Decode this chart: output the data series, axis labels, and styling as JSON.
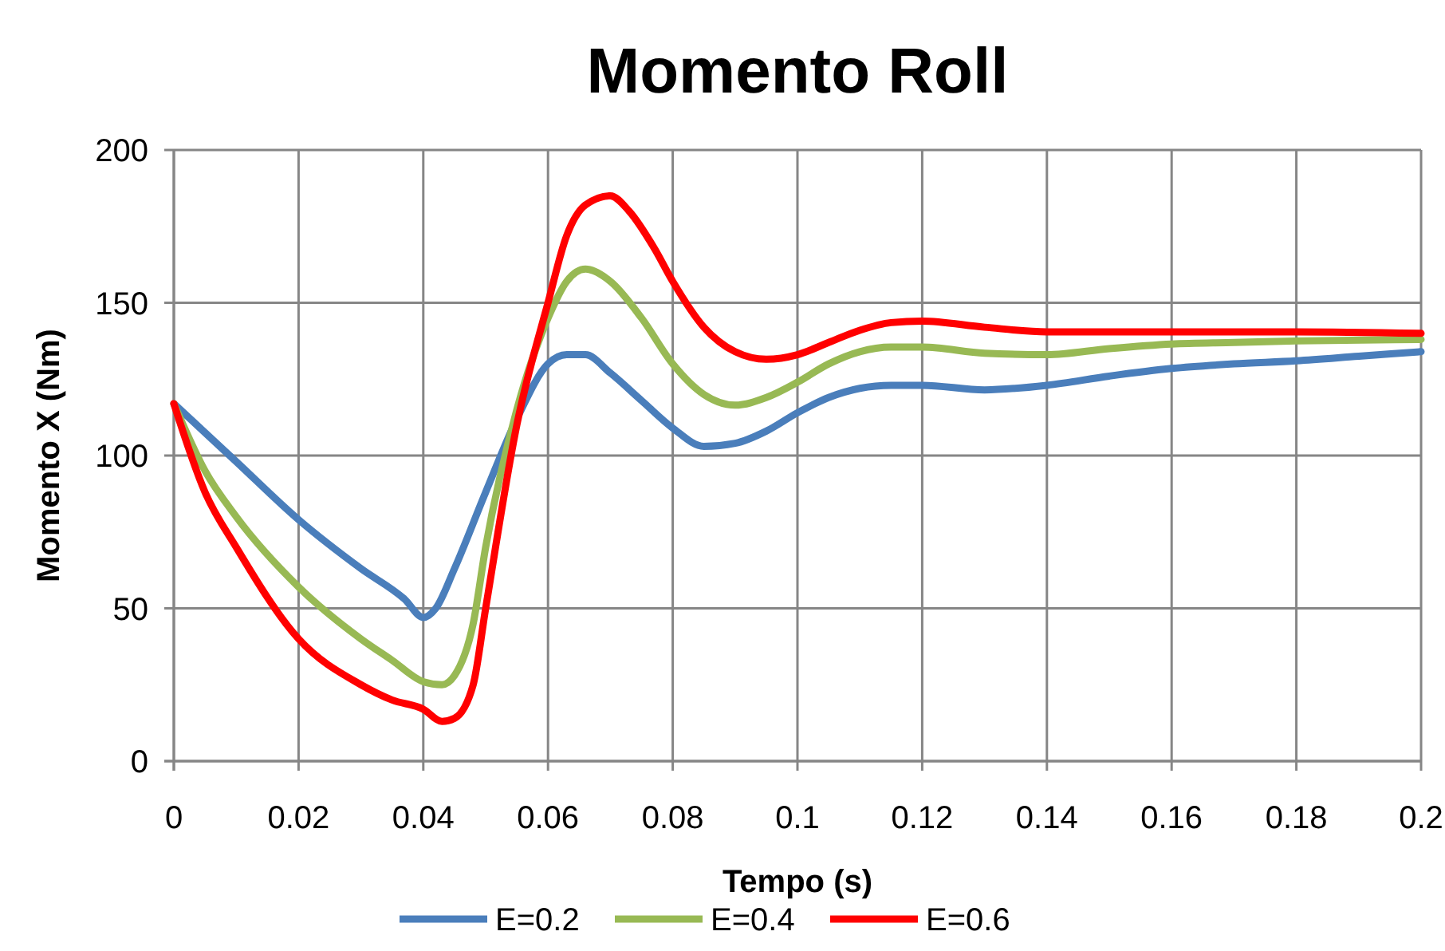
{
  "chart_data": {
    "type": "line",
    "title": "Momento Roll",
    "xlabel": "Tempo (s)",
    "ylabel": "Momento X (Nm)",
    "xlim": [
      0,
      0.2
    ],
    "xticks": [
      0,
      0.02,
      0.04,
      0.06,
      0.08,
      0.1,
      0.12,
      0.14,
      0.16,
      0.18,
      0.2
    ],
    "ylim": [
      0,
      200
    ],
    "yticks": [
      0,
      50,
      100,
      150,
      200
    ],
    "grid": true,
    "legend": "bottom",
    "marker": "none",
    "line_style": "solid",
    "series": [
      {
        "name": "E=0.2",
        "color": "#4a7ebb",
        "x": [
          0,
          0.01,
          0.02,
          0.03,
          0.037,
          0.04,
          0.042,
          0.045,
          0.05,
          0.055,
          0.06,
          0.063,
          0.066,
          0.07,
          0.075,
          0.08,
          0.085,
          0.09,
          0.095,
          0.1,
          0.105,
          0.11,
          0.115,
          0.12,
          0.13,
          0.14,
          0.15,
          0.16,
          0.17,
          0.18,
          0.19,
          0.2
        ],
        "values": [
          117,
          98,
          79,
          63,
          53,
          47,
          50,
          63,
          88,
          112,
          130,
          133,
          133,
          127,
          118,
          109,
          103,
          104,
          108,
          114,
          119,
          122,
          123,
          123,
          121.5,
          123,
          126,
          128.5,
          130,
          131,
          132.5,
          134
        ]
      },
      {
        "name": "E=0.4",
        "color": "#98b954",
        "x": [
          0,
          0.005,
          0.01,
          0.02,
          0.03,
          0.035,
          0.04,
          0.043,
          0.045,
          0.048,
          0.05,
          0.055,
          0.06,
          0.063,
          0.066,
          0.07,
          0.075,
          0.08,
          0.085,
          0.09,
          0.095,
          0.1,
          0.105,
          0.11,
          0.115,
          0.12,
          0.13,
          0.14,
          0.15,
          0.16,
          0.17,
          0.18,
          0.2
        ],
        "values": [
          117,
          95,
          80,
          57,
          40,
          33,
          26,
          25,
          28,
          45,
          70,
          115,
          145,
          157,
          161,
          157,
          145,
          130,
          120,
          116.5,
          119,
          124,
          130,
          134,
          135.5,
          135.5,
          133.5,
          133,
          135,
          136.5,
          137,
          137.5,
          138
        ]
      },
      {
        "name": "E=0.6",
        "color": "#ff0000",
        "x": [
          0,
          0.005,
          0.01,
          0.02,
          0.03,
          0.035,
          0.04,
          0.043,
          0.045,
          0.048,
          0.05,
          0.055,
          0.06,
          0.063,
          0.066,
          0.07,
          0.073,
          0.077,
          0.08,
          0.085,
          0.09,
          0.095,
          0.1,
          0.105,
          0.11,
          0.115,
          0.12,
          0.13,
          0.14,
          0.16,
          0.18,
          0.2
        ],
        "values": [
          117,
          88,
          70,
          40,
          25,
          20,
          17,
          13,
          14,
          25,
          50,
          110,
          150,
          172,
          182,
          185,
          180,
          168,
          157,
          142,
          134,
          131.5,
          133,
          137,
          141,
          143.5,
          144,
          142,
          140.5,
          140.5,
          140.5,
          140
        ]
      }
    ]
  }
}
